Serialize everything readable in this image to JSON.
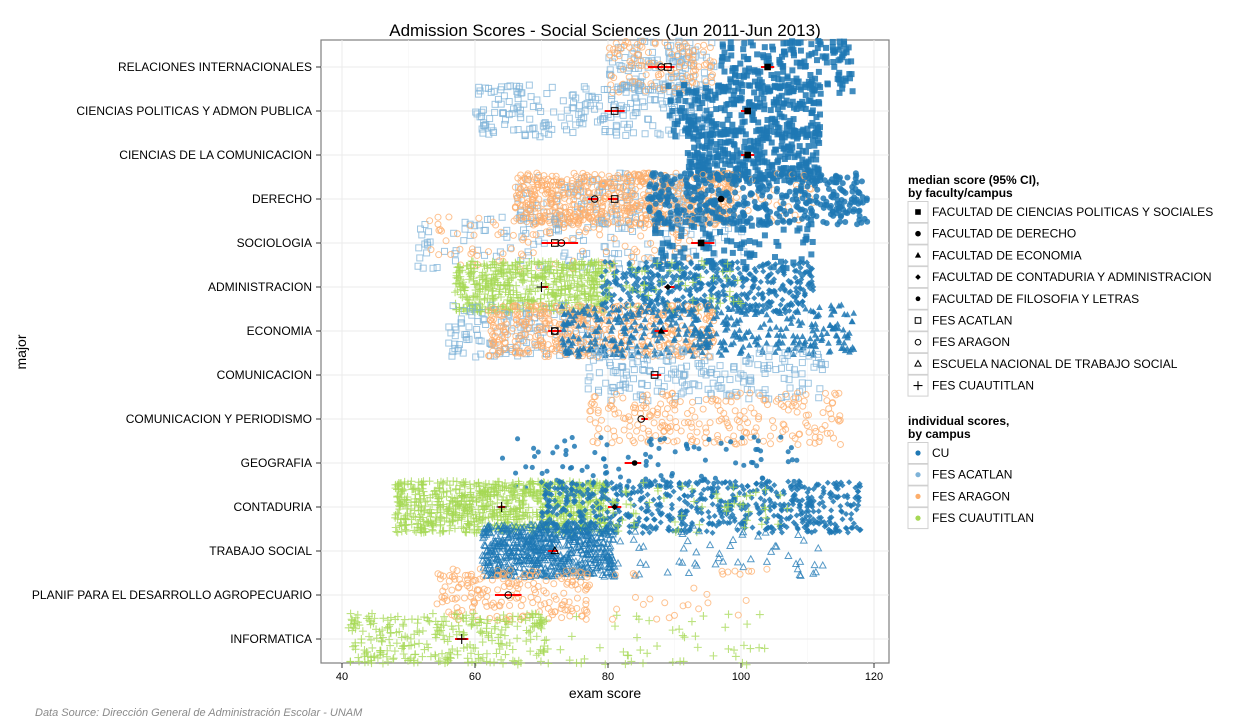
{
  "chart_data": {
    "type": "scatter",
    "title": "Admission Scores - Social Sciences (Jun 2011-Jun 2013)",
    "xlabel": "exam score",
    "ylabel": "major",
    "xlim": [
      37,
      123
    ],
    "xticks": [
      40,
      60,
      80,
      100,
      120
    ],
    "grid": true,
    "legend_placement": "right",
    "source": "Data Source: Dirección General de Administración Escolar - UNAM",
    "categories": [
      "RELACIONES INTERNACIONALES",
      "CIENCIAS POLITICAS Y ADMON PUBLICA",
      "CIENCIAS DE LA COMUNICACION",
      "DERECHO",
      "SOCIOLOGIA",
      "ADMINISTRACION",
      "ECONOMIA",
      "COMUNICACION",
      "COMUNICACION Y PERIODISMO",
      "GEOGRAFIA",
      "CONTADURIA",
      "TRABAJO SOCIAL",
      "PLANIF PARA EL DESARROLLO AGROPECUARIO",
      "INFORMATICA"
    ],
    "legend_faculty": {
      "title": "median score (95% CI),\nby faculty/campus",
      "title_lines": [
        "median score (95% CI),",
        "by faculty/campus"
      ],
      "items": [
        {
          "key": "fcpys",
          "label": "FACULTAD DE CIENCIAS POLITICAS Y SOCIALES",
          "shape": "filled-square"
        },
        {
          "key": "derecho",
          "label": "FACULTAD DE DERECHO",
          "shape": "filled-circle"
        },
        {
          "key": "economia",
          "label": "FACULTAD DE ECONOMIA",
          "shape": "filled-triangle"
        },
        {
          "key": "contaduria",
          "label": "FACULTAD DE CONTADURIA Y ADMINISTRACION",
          "shape": "filled-diamond"
        },
        {
          "key": "filosofia",
          "label": "FACULTAD DE FILOSOFIA Y LETRAS",
          "shape": "small-dot"
        },
        {
          "key": "acatlan",
          "label": "FES ACATLAN",
          "shape": "open-square"
        },
        {
          "key": "aragon",
          "label": "FES ARAGON",
          "shape": "open-circle"
        },
        {
          "key": "ents",
          "label": "ESCUELA NACIONAL DE TRABAJO SOCIAL",
          "shape": "open-triangle"
        },
        {
          "key": "cuautitlan",
          "label": "FES CUAUTITLAN",
          "shape": "plus"
        }
      ]
    },
    "legend_campus": {
      "title_lines": [
        "individual scores,",
        "by campus"
      ],
      "items": [
        {
          "key": "CU",
          "label": "CU",
          "color": "#1f78b4"
        },
        {
          "key": "ACATLAN",
          "label": "FES ACATLAN",
          "color": "#7fb3d8"
        },
        {
          "key": "ARAGON",
          "label": "FES ARAGON",
          "color": "#fdae6b"
        },
        {
          "key": "CUAUTITLAN",
          "label": "FES CUAUTITLAN",
          "color": "#a6d854"
        }
      ]
    },
    "medians": [
      {
        "major": 0,
        "faculty": "aragon",
        "median": 88,
        "ci": [
          86,
          89.5
        ]
      },
      {
        "major": 0,
        "faculty": "acatlan",
        "median": 89,
        "ci": [
          88,
          90
        ]
      },
      {
        "major": 0,
        "faculty": "fcpys",
        "median": 104,
        "ci": [
          103,
          105
        ]
      },
      {
        "major": 1,
        "faculty": "acatlan",
        "median": 81,
        "ci": [
          79.5,
          82.5
        ]
      },
      {
        "major": 1,
        "faculty": "fcpys",
        "median": 101,
        "ci": [
          100,
          101.5
        ]
      },
      {
        "major": 2,
        "faculty": "fcpys",
        "median": 101,
        "ci": [
          100,
          102
        ]
      },
      {
        "major": 3,
        "faculty": "aragon",
        "median": 78,
        "ci": [
          77,
          78.5
        ]
      },
      {
        "major": 3,
        "faculty": "acatlan",
        "median": 81,
        "ci": [
          80,
          81.5
        ]
      },
      {
        "major": 3,
        "faculty": "derecho",
        "median": 97,
        "ci": [
          96.5,
          97.5
        ]
      },
      {
        "major": 4,
        "faculty": "acatlan",
        "median": 72,
        "ci": [
          70,
          74
        ]
      },
      {
        "major": 4,
        "faculty": "aragon",
        "median": 73,
        "ci": [
          71,
          75.5
        ]
      },
      {
        "major": 4,
        "faculty": "fcpys",
        "median": 94,
        "ci": [
          92.5,
          96
        ]
      },
      {
        "major": 5,
        "faculty": "cuautitlan",
        "median": 70,
        "ci": [
          70,
          71
        ]
      },
      {
        "major": 5,
        "faculty": "contaduria",
        "median": 89,
        "ci": [
          88.5,
          90
        ]
      },
      {
        "major": 6,
        "faculty": "acatlan",
        "median": 72,
        "ci": [
          71,
          73
        ]
      },
      {
        "major": 6,
        "faculty": "aragon",
        "median": 72,
        "ci": [
          71.5,
          72.5
        ]
      },
      {
        "major": 6,
        "faculty": "economia",
        "median": 88,
        "ci": [
          87,
          89
        ]
      },
      {
        "major": 7,
        "faculty": "acatlan",
        "median": 87,
        "ci": [
          86.5,
          88
        ]
      },
      {
        "major": 8,
        "faculty": "aragon",
        "median": 85,
        "ci": [
          85,
          86
        ]
      },
      {
        "major": 9,
        "faculty": "filosofia",
        "median": 84,
        "ci": [
          82.5,
          85
        ]
      },
      {
        "major": 10,
        "faculty": "cuautitlan",
        "median": 64,
        "ci": [
          63.5,
          64.5
        ]
      },
      {
        "major": 10,
        "faculty": "contaduria",
        "median": 81,
        "ci": [
          80,
          82
        ]
      },
      {
        "major": 11,
        "faculty": "ents",
        "median": 72,
        "ci": [
          71,
          72.5
        ]
      },
      {
        "major": 12,
        "faculty": "aragon",
        "median": 65,
        "ci": [
          63,
          67
        ]
      },
      {
        "major": 13,
        "faculty": "cuautitlan",
        "median": 58,
        "ci": [
          57,
          59
        ]
      }
    ],
    "score_clusters": [
      {
        "major": 0,
        "campus": "ACATLAN",
        "shape": "open-square",
        "range": [
          80,
          96
        ],
        "n": 120
      },
      {
        "major": 0,
        "campus": "ARAGON",
        "shape": "open-circle",
        "range": [
          80,
          96
        ],
        "n": 120
      },
      {
        "major": 0,
        "campus": "CU",
        "shape": "filled-square",
        "range": [
          97,
          117
        ],
        "n": 180
      },
      {
        "major": 1,
        "campus": "ACATLAN",
        "shape": "open-square",
        "range": [
          60,
          96
        ],
        "n": 240
      },
      {
        "major": 1,
        "campus": "CU",
        "shape": "filled-square",
        "range": [
          89,
          112
        ],
        "n": 240
      },
      {
        "major": 2,
        "campus": "CU",
        "shape": "filled-square",
        "range": [
          92,
          112
        ],
        "n": 300
      },
      {
        "major": 3,
        "campus": "ACATLAN",
        "shape": "open-square",
        "range": [
          66,
          92
        ],
        "n": 150
      },
      {
        "major": 3,
        "campus": "ARAGON",
        "shape": "open-circle",
        "range": [
          66,
          99
        ],
        "n": 650
      },
      {
        "major": 3,
        "campus": "ARAGON",
        "shape": "open-circle",
        "range": [
          95,
          111
        ],
        "n": 50
      },
      {
        "major": 3,
        "campus": "CU",
        "shape": "filled-circle",
        "range": [
          86,
          119
        ],
        "n": 420
      },
      {
        "major": 4,
        "campus": "ACATLAN",
        "shape": "open-square",
        "range": [
          51,
          101
        ],
        "n": 140
      },
      {
        "major": 4,
        "campus": "ARAGON",
        "shape": "open-circle",
        "range": [
          53,
          93
        ],
        "n": 110
      },
      {
        "major": 4,
        "campus": "CU",
        "shape": "filled-square",
        "range": [
          87,
          111
        ],
        "n": 110
      },
      {
        "major": 5,
        "campus": "CUAUTITLAN",
        "shape": "plus",
        "range": [
          57,
          80
        ],
        "n": 550
      },
      {
        "major": 5,
        "campus": "CU",
        "shape": "filled-diamond",
        "range": [
          79,
          111
        ],
        "n": 480
      },
      {
        "major": 5,
        "campus": "CUAUTITLAN",
        "shape": "plus",
        "range": [
          79,
          100
        ],
        "n": 50
      },
      {
        "major": 6,
        "campus": "ACATLAN",
        "shape": "open-square",
        "range": [
          56,
          79
        ],
        "n": 140
      },
      {
        "major": 6,
        "campus": "ARAGON",
        "shape": "open-circle",
        "range": [
          62,
          96
        ],
        "n": 480
      },
      {
        "major": 6,
        "campus": "CU",
        "shape": "filled-triangle",
        "range": [
          73,
          117
        ],
        "n": 420
      },
      {
        "major": 7,
        "campus": "ACATLAN",
        "shape": "open-square",
        "range": [
          77,
          113
        ],
        "n": 200
      },
      {
        "major": 8,
        "campus": "ARAGON",
        "shape": "open-circle",
        "range": [
          77,
          115
        ],
        "n": 240
      },
      {
        "major": 9,
        "campus": "CU",
        "shape": "small-dot",
        "range": [
          64,
          109
        ],
        "n": 110
      },
      {
        "major": 10,
        "campus": "CUAUTITLAN",
        "shape": "plus",
        "range": [
          48,
          80
        ],
        "n": 850
      },
      {
        "major": 10,
        "campus": "CU",
        "shape": "filled-diamond",
        "range": [
          70,
          118
        ],
        "n": 650
      },
      {
        "major": 10,
        "campus": "CUAUTITLAN",
        "shape": "plus",
        "range": [
          78,
          107
        ],
        "n": 60
      },
      {
        "major": 11,
        "campus": "CU",
        "shape": "open-triangle",
        "range": [
          61,
          81
        ],
        "n": 650
      },
      {
        "major": 11,
        "campus": "CU",
        "shape": "open-triangle",
        "range": [
          80,
          113
        ],
        "n": 60
      },
      {
        "major": 12,
        "campus": "ARAGON",
        "shape": "open-circle",
        "range": [
          54,
          77
        ],
        "n": 190
      },
      {
        "major": 12,
        "campus": "ARAGON",
        "shape": "open-circle",
        "range": [
          76,
          106
        ],
        "n": 30
      },
      {
        "major": 13,
        "campus": "CUAUTITLAN",
        "shape": "plus",
        "range": [
          41,
          71
        ],
        "n": 300
      },
      {
        "major": 13,
        "campus": "CUAUTITLAN",
        "shape": "plus",
        "range": [
          70,
          106
        ],
        "n": 50
      }
    ],
    "colors": {
      "CU": "#1f78b4",
      "ACATLAN": "#7fb3d8",
      "ARAGON": "#fdae6b",
      "CUAUTITLAN": "#a6d854",
      "ci": "#ff0000"
    }
  }
}
